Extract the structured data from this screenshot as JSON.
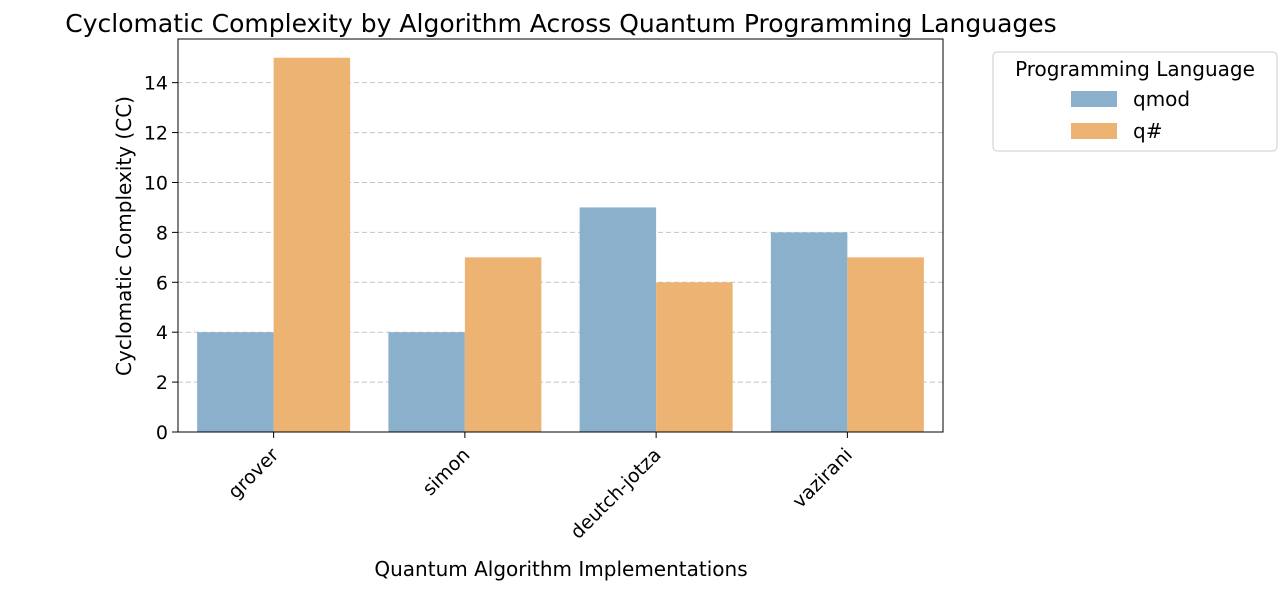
{
  "chart_data": {
    "type": "bar",
    "title": "Cyclomatic Complexity by Algorithm Across Quantum Programming Languages",
    "xlabel": "Quantum Algorithm Implementations",
    "ylabel": "Cyclomatic Complexity (CC)",
    "categories": [
      "grover",
      "simon",
      "deutch-jotza",
      "vazirani"
    ],
    "series": [
      {
        "name": "qmod",
        "values": [
          4,
          4,
          9,
          8
        ],
        "color": "#8bb0cb"
      },
      {
        "name": "q#",
        "values": [
          15,
          7,
          6,
          7
        ],
        "color": "#ecb373"
      }
    ],
    "ylim": [
      0,
      15.75
    ],
    "yticks": [
      0,
      2,
      4,
      6,
      8,
      10,
      12,
      14
    ],
    "grid": "y-dashed",
    "legend": {
      "title": "Programming Language",
      "placement": "outside-upper-right"
    },
    "xtick_rotation_deg": 45
  }
}
